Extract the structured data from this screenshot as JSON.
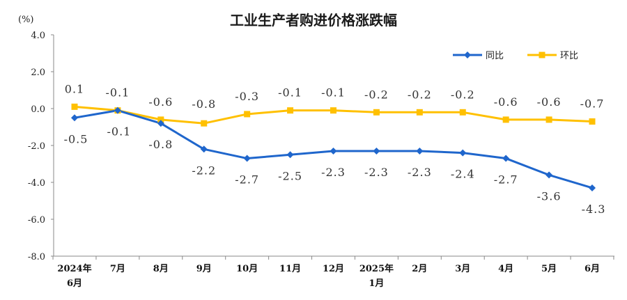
{
  "chart_data": {
    "type": "line",
    "title": "工业生产者购进价格涨跌幅",
    "unit_label": "(%)",
    "categories": [
      [
        "2024年",
        "6月"
      ],
      [
        "7月"
      ],
      [
        "8月"
      ],
      [
        "9月"
      ],
      [
        "10月"
      ],
      [
        "11月"
      ],
      [
        "12月"
      ],
      [
        "2025年",
        "1月"
      ],
      [
        "2月"
      ],
      [
        "3月"
      ],
      [
        "4月"
      ],
      [
        "5月"
      ],
      [
        "6月"
      ]
    ],
    "ylim": [
      -8.0,
      4.0
    ],
    "yticks": [
      "4.0",
      "2.0",
      "0.0",
      "-2.0",
      "-4.0",
      "-6.0",
      "-8.0"
    ],
    "grid": false,
    "legend_position": "top-right",
    "series": [
      {
        "name": "同比",
        "color": "#1F66CC",
        "marker": "diamond",
        "values": [
          -0.5,
          -0.1,
          -0.8,
          -2.2,
          -2.7,
          -2.5,
          -2.3,
          -2.3,
          -2.3,
          -2.4,
          -2.7,
          -3.6,
          -4.3
        ],
        "labels": [
          "-0.5",
          "-0.1",
          "-0.8",
          "-2.2",
          "-2.7",
          "-2.5",
          "-2.3",
          "-2.3",
          "-2.3",
          "-2.4",
          "-2.7",
          "-3.6",
          "-4.3"
        ]
      },
      {
        "name": "环比",
        "color": "#FFC000",
        "marker": "square",
        "values": [
          0.1,
          -0.1,
          -0.6,
          -0.8,
          -0.3,
          -0.1,
          -0.1,
          -0.2,
          -0.2,
          -0.2,
          -0.6,
          -0.6,
          -0.7
        ],
        "labels": [
          "0.1",
          "-0.1",
          "-0.6",
          "-0.8",
          "-0.3",
          "-0.1",
          "-0.1",
          "-0.2",
          "-0.2",
          "-0.2",
          "-0.6",
          "-0.6",
          "-0.7"
        ]
      }
    ]
  }
}
